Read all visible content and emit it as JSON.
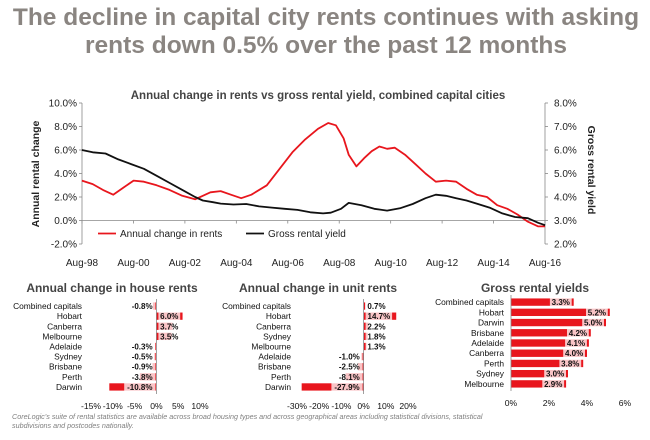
{
  "page": {
    "title": "The decline in capital city rents continues with asking rents down 0.5% over the past 12 months",
    "footnote": "CoreLogic’s suite of rental statistics are available across broad housing types and across geographical areas including statistical divisions, statistical subdivisions and postcodes nationally."
  },
  "colors": {
    "red": "#e8161d",
    "black": "#111111",
    "title_grey": "#8a8581",
    "axis_grey": "#888888",
    "bar_label_bg": "#f0c4c4"
  },
  "chart_data": [
    {
      "type": "line",
      "title": "Annual change in rents vs gross rental yield, combined capital cities",
      "ylabel": "Annual rental change",
      "y2label": "Gross rental yield",
      "x_ticks": [
        "Aug-98",
        "Aug-00",
        "Aug-02",
        "Aug-04",
        "Aug-06",
        "Aug-08",
        "Aug-10",
        "Aug-12",
        "Aug-14",
        "Aug-16"
      ],
      "x_range": [
        1998.583,
        2016.667
      ],
      "ylim": [
        -2,
        10
      ],
      "y_ticks": [
        "-2.0%",
        "0.0%",
        "2.0%",
        "4.0%",
        "6.0%",
        "8.0%",
        "10.0%"
      ],
      "y2lim": [
        2,
        8
      ],
      "y2_ticks": [
        "2.0%",
        "3.0%",
        "4.0%",
        "5.0%",
        "6.0%",
        "7.0%",
        "8.0%"
      ],
      "legend_position": "bottom-left",
      "grid": false,
      "series": [
        {
          "name": "Annual change in rents",
          "axis": "left",
          "color": "#e8161d",
          "points": [
            [
              1998.58,
              3.4
            ],
            [
              1999.0,
              3.1
            ],
            [
              1999.4,
              2.6
            ],
            [
              1999.8,
              2.2
            ],
            [
              2000.2,
              2.8
            ],
            [
              2000.6,
              3.4
            ],
            [
              2001.0,
              3.3
            ],
            [
              2001.5,
              3.0
            ],
            [
              2002.0,
              2.6
            ],
            [
              2002.5,
              2.1
            ],
            [
              2003.0,
              1.8
            ],
            [
              2003.3,
              2.1
            ],
            [
              2003.6,
              2.4
            ],
            [
              2004.0,
              2.5
            ],
            [
              2004.4,
              2.2
            ],
            [
              2004.8,
              1.9
            ],
            [
              2005.2,
              2.2
            ],
            [
              2005.8,
              3.0
            ],
            [
              2006.3,
              4.4
            ],
            [
              2006.8,
              5.8
            ],
            [
              2007.3,
              6.9
            ],
            [
              2007.8,
              7.8
            ],
            [
              2008.2,
              8.3
            ],
            [
              2008.5,
              8.1
            ],
            [
              2008.8,
              7.0
            ],
            [
              2009.0,
              5.6
            ],
            [
              2009.3,
              4.6
            ],
            [
              2009.6,
              5.3
            ],
            [
              2009.9,
              5.9
            ],
            [
              2010.2,
              6.3
            ],
            [
              2010.5,
              6.1
            ],
            [
              2010.8,
              6.2
            ],
            [
              2011.2,
              5.6
            ],
            [
              2011.6,
              4.8
            ],
            [
              2012.0,
              4.0
            ],
            [
              2012.4,
              3.3
            ],
            [
              2012.8,
              3.4
            ],
            [
              2013.2,
              3.3
            ],
            [
              2013.6,
              2.7
            ],
            [
              2014.0,
              2.2
            ],
            [
              2014.4,
              2.0
            ],
            [
              2014.8,
              1.3
            ],
            [
              2015.2,
              1.0
            ],
            [
              2015.6,
              0.5
            ],
            [
              2016.0,
              -0.1
            ],
            [
              2016.4,
              -0.5
            ],
            [
              2016.67,
              -0.5
            ]
          ]
        },
        {
          "name": "Gross rental yield",
          "axis": "right",
          "color": "#111111",
          "points": [
            [
              1998.58,
              6.0
            ],
            [
              1999.0,
              5.9
            ],
            [
              1999.5,
              5.85
            ],
            [
              2000.0,
              5.6
            ],
            [
              2000.5,
              5.4
            ],
            [
              2001.0,
              5.2
            ],
            [
              2001.5,
              4.9
            ],
            [
              2002.0,
              4.6
            ],
            [
              2002.5,
              4.3
            ],
            [
              2003.0,
              4.0
            ],
            [
              2003.3,
              3.85
            ],
            [
              2003.7,
              3.78
            ],
            [
              2004.0,
              3.72
            ],
            [
              2004.5,
              3.68
            ],
            [
              2005.0,
              3.7
            ],
            [
              2005.5,
              3.6
            ],
            [
              2006.0,
              3.55
            ],
            [
              2006.5,
              3.5
            ],
            [
              2007.0,
              3.45
            ],
            [
              2007.5,
              3.35
            ],
            [
              2008.0,
              3.3
            ],
            [
              2008.3,
              3.33
            ],
            [
              2008.7,
              3.5
            ],
            [
              2009.0,
              3.75
            ],
            [
              2009.5,
              3.65
            ],
            [
              2010.0,
              3.5
            ],
            [
              2010.5,
              3.42
            ],
            [
              2011.0,
              3.52
            ],
            [
              2011.5,
              3.7
            ],
            [
              2012.0,
              3.95
            ],
            [
              2012.4,
              4.1
            ],
            [
              2012.8,
              4.05
            ],
            [
              2013.2,
              3.95
            ],
            [
              2013.6,
              3.85
            ],
            [
              2014.0,
              3.72
            ],
            [
              2014.5,
              3.55
            ],
            [
              2015.0,
              3.3
            ],
            [
              2015.5,
              3.15
            ],
            [
              2016.0,
              3.1
            ],
            [
              2016.4,
              2.9
            ],
            [
              2016.67,
              2.8
            ]
          ]
        }
      ]
    },
    {
      "type": "bar",
      "orientation": "horizontal",
      "title": "Annual change in house rents",
      "categories": [
        "Combined capitals",
        "Hobart",
        "Canberra",
        "Melbourne",
        "Adelaide",
        "Sydney",
        "Brisbane",
        "Perth",
        "Darwin"
      ],
      "values": [
        -0.8,
        6.0,
        3.7,
        3.5,
        -0.3,
        -0.5,
        -0.9,
        -3.8,
        -10.8
      ],
      "labels": [
        "-0.8%",
        "6.0%",
        "3.7%",
        "3.5%",
        "-0.3%",
        "-0.5%",
        "-0.9%",
        "-3.8%",
        "-10.8%"
      ],
      "xlim": [
        -15,
        10
      ],
      "x_ticks": [
        "-15%",
        "-10%",
        "-5%",
        "0%",
        "5%",
        "10%"
      ]
    },
    {
      "type": "bar",
      "orientation": "horizontal",
      "title": "Annual change in unit rents",
      "categories": [
        "Combined capitals",
        "Hobart",
        "Canberra",
        "Sydney",
        "Melbourne",
        "Adelaide",
        "Brisbane",
        "Perth",
        "Darwin"
      ],
      "values": [
        0.7,
        14.7,
        2.2,
        1.8,
        1.3,
        -1.0,
        -2.5,
        -8.1,
        -27.9
      ],
      "labels": [
        "0.7%",
        "14.7%",
        "2.2%",
        "1.8%",
        "1.3%",
        "-1.0%",
        "-2.5%",
        "-8.1%",
        "-27.9%"
      ],
      "xlim": [
        -30,
        20
      ],
      "x_ticks": [
        "-30%",
        "-20%",
        "-10%",
        "0%",
        "10%",
        "20%"
      ]
    },
    {
      "type": "bar",
      "orientation": "horizontal",
      "title": "Gross rental yields",
      "categories": [
        "Combined capitals",
        "Hobart",
        "Darwin",
        "Brisbane",
        "Adelaide",
        "Canberra",
        "Perth",
        "Sydney",
        "Melbourne"
      ],
      "values": [
        3.3,
        5.2,
        5.0,
        4.2,
        4.1,
        4.0,
        3.8,
        3.0,
        2.9
      ],
      "labels": [
        "3.3%",
        "5.2%",
        "5.0%",
        "4.2%",
        "4.1%",
        "4.0%",
        "3.8%",
        "3.0%",
        "2.9%"
      ],
      "xlim": [
        0,
        6
      ],
      "x_ticks": [
        "0%",
        "2%",
        "4%",
        "6%"
      ]
    }
  ]
}
